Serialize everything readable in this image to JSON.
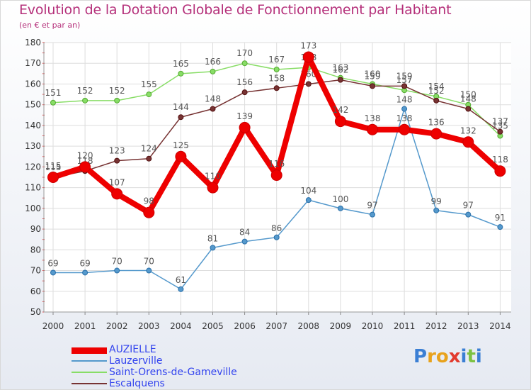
{
  "chart_data": {
    "type": "line",
    "title": "Evolution de la Dotation Globale de Fonctionnement par Habitant",
    "subtitle": "(en € et par an)",
    "xlabel": "",
    "ylabel": "",
    "ylim": [
      50,
      180
    ],
    "yticks": [
      50,
      60,
      70,
      80,
      90,
      100,
      110,
      120,
      130,
      140,
      150,
      160,
      170,
      180
    ],
    "categories": [
      "2000",
      "2001",
      "2002",
      "2003",
      "2004",
      "2005",
      "2006",
      "2007",
      "2008",
      "2009",
      "2010",
      "2011",
      "2012",
      "2013",
      "2014"
    ],
    "grid": true,
    "legend_position": "bottom-left",
    "series": [
      {
        "name": "Saint-Orens-de-Gameville",
        "color": "#88dd66",
        "values": [
          151,
          152,
          152,
          155,
          165,
          166,
          170,
          167,
          168,
          163,
          160,
          157,
          154,
          150,
          135
        ]
      },
      {
        "name": "Escalquens",
        "color": "#773333",
        "values": [
          115,
          118,
          123,
          124,
          144,
          148,
          156,
          158,
          160,
          162,
          159,
          159,
          152,
          148,
          137
        ]
      },
      {
        "name": "Lauzerville",
        "color": "#5599cc",
        "values": [
          69,
          69,
          70,
          70,
          61,
          81,
          84,
          86,
          104,
          100,
          97,
          148,
          99,
          97,
          91
        ]
      },
      {
        "name": "AUZIELLE",
        "color": "#ee0000",
        "values": [
          115,
          120,
          107,
          98,
          125,
          110,
          139,
          116,
          173,
          142,
          138,
          138,
          136,
          132,
          118
        ]
      }
    ]
  },
  "legend": {
    "items": [
      {
        "label": "AUZIELLE",
        "color": "#ee0000"
      },
      {
        "label": "Lauzerville",
        "color": "#5599cc"
      },
      {
        "label": "Saint-Orens-de-Gameville",
        "color": "#88dd66"
      },
      {
        "label": "Escalquens",
        "color": "#773333"
      }
    ]
  },
  "branding": {
    "logo_text": "Proxiti"
  }
}
